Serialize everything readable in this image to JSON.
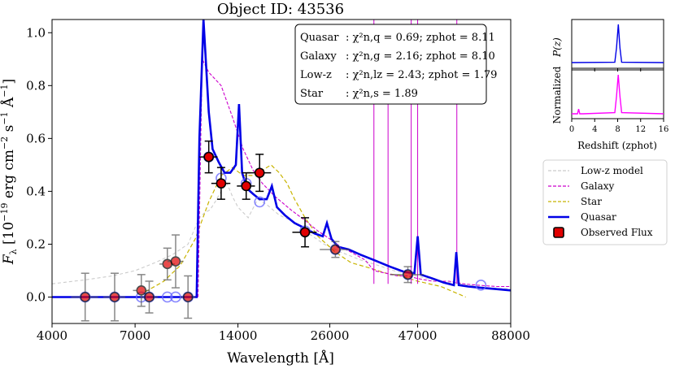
{
  "chart_data": [
    {
      "type": "line",
      "title": "Object ID: 43536",
      "xlabel": "Wavelength [Å]",
      "ylabel": "F_λ [10^-19 erg cm^-2 s^-1 Å^-1]",
      "xscale": "log",
      "xlim": [
        4000,
        88000
      ],
      "ylim": [
        -0.1,
        1.05
      ],
      "xticks": [
        "4000",
        "7000",
        "14000",
        "26000",
        "47000",
        "88000"
      ],
      "xtick_values": [
        4000,
        7000,
        14000,
        26000,
        47000,
        88000
      ],
      "yticks": [
        "0.0",
        "0.2",
        "0.4",
        "0.6",
        "0.8",
        "1.0"
      ],
      "ytick_values": [
        0.0,
        0.2,
        0.4,
        0.6,
        0.8,
        1.0
      ],
      "fit_box": [
        {
          "name": "Quasar",
          "stat": ": χ²n,q = 0.69; zphot = 8.11"
        },
        {
          "name": "Galaxy",
          "stat": ": χ²n,g = 2.16; zphot = 8.10"
        },
        {
          "name": "Low-z",
          "stat": ": χ²n,lz = 2.43; zphot = 1.79"
        },
        {
          "name": "Star",
          "stat": ": χ²n,s = 1.89"
        }
      ],
      "legend": [
        {
          "label": "Low-z model",
          "color": "#cccccc",
          "style": "dashed"
        },
        {
          "label": "Galaxy",
          "color": "#cc00cc",
          "style": "dashed"
        },
        {
          "label": "Star",
          "color": "#c8b400",
          "style": "dashed"
        },
        {
          "label": "Quasar",
          "color": "#0000e6",
          "style": "solid"
        },
        {
          "label": "Observed Flux",
          "color": "#e00000",
          "style": "marker"
        }
      ],
      "series": [
        {
          "name": "Quasar",
          "color": "#0000e6",
          "x": [
            4000,
            10400,
            10600,
            10800,
            11100,
            11500,
            11800,
            12300,
            12800,
            13300,
            13800,
            14100,
            14400,
            14900,
            15500,
            16200,
            17000,
            17600,
            18200,
            19200,
            20500,
            22000,
            23500,
            24800,
            25500,
            26300,
            27500,
            29500,
            32000,
            35000,
            39000,
            43000,
            46000,
            47000,
            48000,
            52000,
            56000,
            60000,
            61000,
            62000,
            66000,
            72000,
            80000,
            88000
          ],
          "y": [
            0.0,
            0.0,
            0.0,
            0.6,
            1.05,
            0.7,
            0.56,
            0.51,
            0.47,
            0.47,
            0.5,
            0.73,
            0.47,
            0.41,
            0.39,
            0.37,
            0.37,
            0.42,
            0.34,
            0.31,
            0.28,
            0.26,
            0.24,
            0.23,
            0.28,
            0.22,
            0.19,
            0.18,
            0.16,
            0.14,
            0.115,
            0.095,
            0.09,
            0.23,
            0.085,
            0.07,
            0.055,
            0.045,
            0.17,
            0.045,
            0.04,
            0.035,
            0.03,
            0.025
          ]
        },
        {
          "name": "Galaxy",
          "color": "#cc00cc",
          "x": [
            10700,
            11000,
            11500,
            12500,
            13500,
            14500,
            15500,
            16500,
            18000,
            20000,
            22000,
            24000,
            26000,
            28000,
            30000,
            33000,
            35000,
            38000,
            41000,
            44000,
            47000,
            52000,
            58000,
            64000,
            70000,
            80000,
            88000
          ],
          "y": [
            0.0,
            0.9,
            0.85,
            0.8,
            0.68,
            0.56,
            0.48,
            0.43,
            0.38,
            0.33,
            0.29,
            0.25,
            0.22,
            0.19,
            0.17,
            0.14,
            0.1,
            0.09,
            0.08,
            0.08,
            0.07,
            0.06,
            0.06,
            0.05,
            0.045,
            0.04,
            0.04
          ]
        },
        {
          "name": "Star",
          "color": "#c8b400",
          "x": [
            7500,
            8500,
            9500,
            10500,
            11500,
            12500,
            13500,
            14500,
            15500,
            16500,
            17500,
            18500,
            19500,
            20500,
            22000,
            24000,
            27000,
            30000,
            34000,
            38000,
            42000,
            47000,
            55000,
            65000
          ],
          "y": [
            0.02,
            0.06,
            0.12,
            0.22,
            0.36,
            0.46,
            0.49,
            0.46,
            0.46,
            0.48,
            0.5,
            0.47,
            0.43,
            0.37,
            0.3,
            0.23,
            0.17,
            0.13,
            0.11,
            0.09,
            0.08,
            0.06,
            0.04,
            0.0
          ]
        },
        {
          "name": "Low-z model",
          "color": "#cccccc",
          "x": [
            4000,
            5000,
            6000,
            7000,
            8000,
            9000,
            10000,
            10800,
            11200,
            11600,
            12000,
            12500,
            13000,
            13500,
            14000,
            15000,
            16000,
            17000,
            18500,
            20000,
            22000,
            25000,
            28000,
            32000,
            36000,
            40000,
            45000,
            50000,
            58000,
            66000,
            76000,
            88000
          ],
          "y": [
            0.05,
            0.065,
            0.08,
            0.1,
            0.13,
            0.16,
            0.2,
            0.3,
            0.32,
            0.33,
            0.36,
            0.4,
            0.43,
            0.38,
            0.34,
            0.3,
            0.37,
            0.35,
            0.31,
            0.29,
            0.25,
            0.2,
            0.17,
            0.14,
            0.12,
            0.1,
            0.085,
            0.07,
            0.055,
            0.045,
            0.035,
            0.03
          ]
        }
      ],
      "galaxy_emission_lines": [
        {
          "x": 35000,
          "y": 1.05
        },
        {
          "x": 38500,
          "y": 0.8
        },
        {
          "x": 45000,
          "y": 1.05
        },
        {
          "x": 47000,
          "y": 1.05
        },
        {
          "x": 61200,
          "y": 1.05
        }
      ],
      "observed_flux": [
        {
          "x": 11500,
          "y": 0.53,
          "yerr": 0.06,
          "xerr": 700
        },
        {
          "x": 12500,
          "y": 0.43,
          "yerr": 0.06,
          "xerr": 800
        },
        {
          "x": 14800,
          "y": 0.42,
          "yerr": 0.05,
          "xerr": 900
        },
        {
          "x": 16200,
          "y": 0.47,
          "yerr": 0.07,
          "xerr": 1300
        },
        {
          "x": 22000,
          "y": 0.245,
          "yerr": 0.055,
          "xerr": 1800
        },
        {
          "x": 27000,
          "y": 0.18,
          "yerr": 0.03,
          "xerr": 2700
        },
        {
          "x": 44000,
          "y": 0.085,
          "yerr": 0.03,
          "xerr": 5000
        },
        {
          "x": 7300,
          "y": 0.025,
          "yerr": 0.06,
          "xerr": 400
        },
        {
          "x": 7700,
          "y": 0.0,
          "yerr": 0.06,
          "xerr": 450
        },
        {
          "x": 8700,
          "y": 0.125,
          "yerr": 0.06,
          "xerr": 450
        },
        {
          "x": 9200,
          "y": 0.135,
          "yerr": 0.1,
          "xerr": 500
        },
        {
          "x": 10000,
          "y": 0.0,
          "yerr": 0.08,
          "xerr": 500
        },
        {
          "x": 5000,
          "y": 0.0,
          "yerr": 0.09,
          "xerr": 450
        },
        {
          "x": 6100,
          "y": 0.0,
          "yerr": 0.09,
          "xerr": 450
        }
      ],
      "quasar_model_flux": [
        {
          "x": 5000,
          "y": 0.0
        },
        {
          "x": 6100,
          "y": 0.0
        },
        {
          "x": 7300,
          "y": 0.0
        },
        {
          "x": 7700,
          "y": 0.0
        },
        {
          "x": 8700,
          "y": 0.0
        },
        {
          "x": 9200,
          "y": 0.0
        },
        {
          "x": 10000,
          "y": 0.0
        },
        {
          "x": 11500,
          "y": 0.53
        },
        {
          "x": 12500,
          "y": 0.45
        },
        {
          "x": 14800,
          "y": 0.43
        },
        {
          "x": 16200,
          "y": 0.36
        },
        {
          "x": 22000,
          "y": 0.25
        },
        {
          "x": 27000,
          "y": 0.18
        },
        {
          "x": 44000,
          "y": 0.085
        },
        {
          "x": 72000,
          "y": 0.045
        }
      ]
    },
    {
      "type": "line",
      "title": "",
      "ylabel": "Normalized P(z)",
      "panel_label": "P(z)",
      "xlabel": "Redshift (zphot)",
      "xlim": [
        0,
        16
      ],
      "xticks": [
        "0",
        "4",
        "8",
        "12",
        "16"
      ],
      "xtick_values": [
        0,
        4,
        8,
        12,
        16
      ],
      "series": [
        {
          "name": "Quasar",
          "color": "#0000e6",
          "x": [
            0,
            7.5,
            7.8,
            8.11,
            8.4,
            8.7,
            16
          ],
          "y": [
            0.02,
            0.03,
            0.4,
            1.0,
            0.4,
            0.03,
            0.02
          ]
        },
        {
          "name": "Galaxy",
          "color": "#ff00ff",
          "x": [
            0,
            1.0,
            1.2,
            1.4,
            2.0,
            7.5,
            7.8,
            8.1,
            8.4,
            8.7,
            16
          ],
          "y": [
            0.0,
            0.0,
            0.12,
            0.0,
            0.0,
            0.03,
            0.45,
            1.0,
            0.45,
            0.03,
            0.0
          ]
        }
      ]
    }
  ]
}
